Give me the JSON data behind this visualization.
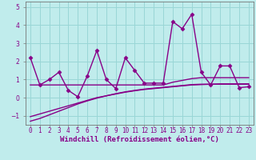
{
  "xlabel": "Windchill (Refroidissement éolien,°C)",
  "x": [
    0,
    1,
    2,
    3,
    4,
    5,
    6,
    7,
    8,
    9,
    10,
    11,
    12,
    13,
    14,
    15,
    16,
    17,
    18,
    19,
    20,
    21,
    22,
    23
  ],
  "y_main": [
    2.2,
    0.7,
    1.0,
    1.4,
    0.4,
    0.05,
    1.2,
    2.6,
    1.0,
    0.5,
    2.2,
    1.5,
    0.8,
    0.8,
    0.8,
    4.2,
    3.8,
    4.6,
    1.4,
    0.7,
    1.75,
    1.75,
    0.55,
    0.6
  ],
  "y_line1": [
    0.7,
    0.7,
    0.7,
    0.7,
    0.7,
    0.7,
    0.7,
    0.7,
    0.7,
    0.7,
    0.7,
    0.7,
    0.7,
    0.7,
    0.7,
    0.85,
    0.95,
    1.05,
    1.1,
    1.1,
    1.1,
    1.1,
    1.1,
    1.1
  ],
  "y_line2": [
    -1.05,
    -0.9,
    -0.75,
    -0.6,
    -0.45,
    -0.3,
    -0.15,
    0.0,
    0.1,
    0.2,
    0.3,
    0.38,
    0.45,
    0.5,
    0.55,
    0.6,
    0.65,
    0.7,
    0.72,
    0.74,
    0.76,
    0.76,
    0.76,
    0.76
  ],
  "y_line3": [
    -1.3,
    -1.15,
    -0.95,
    -0.75,
    -0.55,
    -0.35,
    -0.18,
    -0.03,
    0.1,
    0.22,
    0.32,
    0.4,
    0.47,
    0.52,
    0.57,
    0.62,
    0.67,
    0.72,
    0.74,
    0.74,
    0.74,
    0.74,
    0.74,
    0.74
  ],
  "ylim": [
    -1.5,
    5.3
  ],
  "xlim": [
    -0.5,
    23.5
  ],
  "bg_color": "#c0ecec",
  "grid_color": "#99d6d6",
  "line_color": "#880088",
  "marker": "D",
  "marker_size": 2.5,
  "line_width": 1.0,
  "tick_fontsize": 5.5,
  "label_fontsize": 6.5
}
